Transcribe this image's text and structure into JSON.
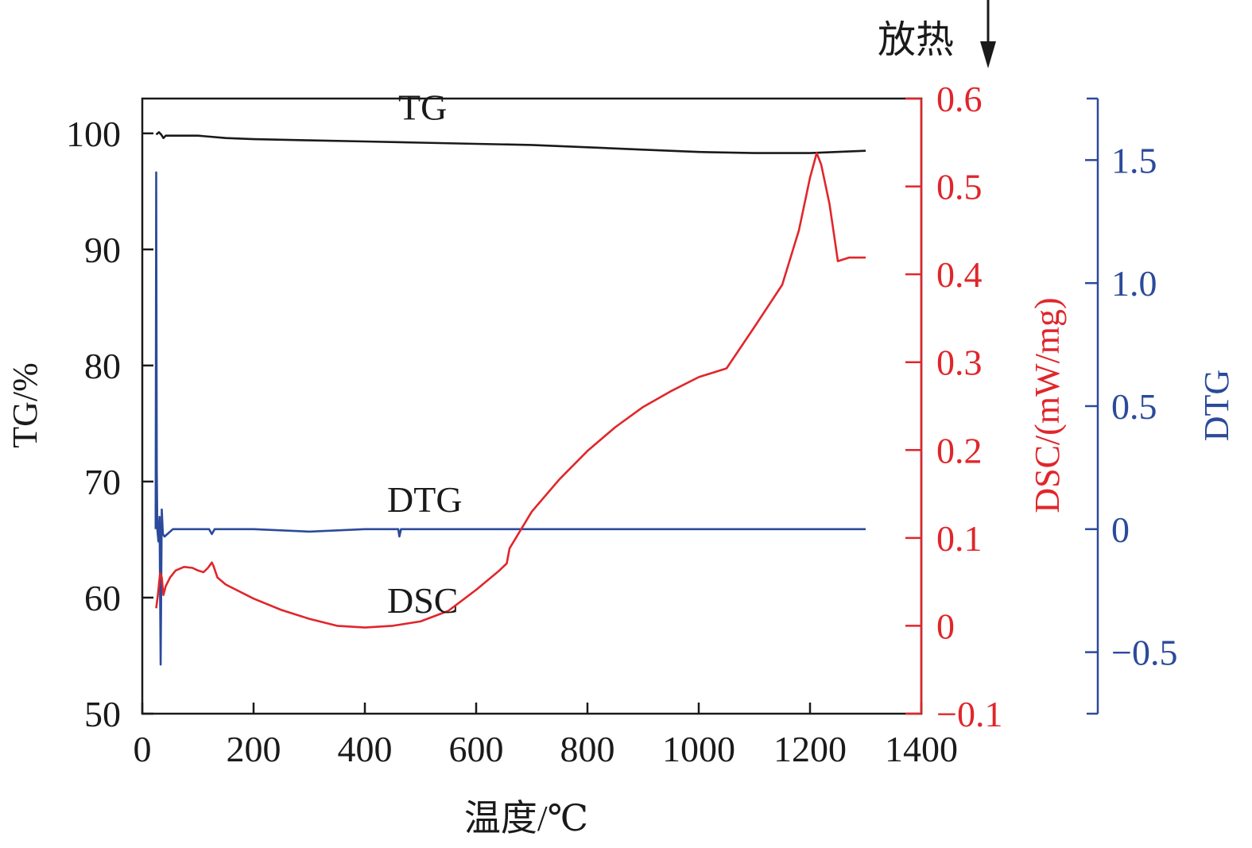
{
  "chart_data": {
    "type": "line",
    "xlabel": "温度/℃",
    "x_axis": {
      "ticks": [
        0,
        200,
        400,
        600,
        800,
        1000,
        1200,
        1400
      ],
      "range": [
        0,
        1400
      ]
    },
    "axes": {
      "tg": {
        "label": "TG/%",
        "range": [
          50,
          103
        ],
        "ticks": [
          50,
          60,
          70,
          80,
          90,
          100
        ],
        "color": "#1a1a1a"
      },
      "dsc": {
        "label": "DSC/(mW/mg)",
        "range": [
          -0.1,
          0.6
        ],
        "ticks": [
          -0.1,
          0,
          0.1,
          0.2,
          0.3,
          0.4,
          0.5,
          0.6
        ],
        "tick_labels": [
          "−0.1",
          "0",
          "0.1",
          "0.2",
          "0.3",
          "0.4",
          "0.5",
          "0.6"
        ],
        "color": "#e0262b"
      },
      "dtg": {
        "label": "DTG",
        "range": [
          -0.75,
          1.75
        ],
        "ticks": [
          -0.5,
          0,
          0.5,
          1.0,
          1.5
        ],
        "tick_labels": [
          "−0.5",
          "0",
          "0.5",
          "1.0",
          "1.5"
        ],
        "color": "#2b4a9b"
      }
    },
    "annotation": {
      "text": "放热"
    },
    "series": [
      {
        "name": "TG",
        "axis": "tg",
        "color": "#1a1a1a",
        "label": "TG",
        "label_at": [
          460,
          101.2
        ],
        "points": [
          [
            25,
            99.9
          ],
          [
            30,
            100.1
          ],
          [
            34,
            99.9
          ],
          [
            38,
            99.6
          ],
          [
            42,
            99.8
          ],
          [
            50,
            99.8
          ],
          [
            100,
            99.8
          ],
          [
            150,
            99.6
          ],
          [
            200,
            99.5
          ],
          [
            300,
            99.4
          ],
          [
            400,
            99.3
          ],
          [
            500,
            99.2
          ],
          [
            600,
            99.1
          ],
          [
            700,
            99.0
          ],
          [
            800,
            98.8
          ],
          [
            900,
            98.6
          ],
          [
            1000,
            98.4
          ],
          [
            1100,
            98.3
          ],
          [
            1200,
            98.3
          ],
          [
            1300,
            98.5
          ]
        ]
      },
      {
        "name": "DTG",
        "axis": "dtg",
        "color": "#2b4a9b",
        "label": "DTG",
        "label_at": [
          440,
          0.07
        ],
        "points": [
          [
            24,
            0.0
          ],
          [
            25,
            1.45
          ],
          [
            26,
            0.25
          ],
          [
            27,
            0.0
          ],
          [
            29,
            -0.05
          ],
          [
            31,
            0.05
          ],
          [
            33,
            -0.55
          ],
          [
            35,
            0.08
          ],
          [
            37,
            -0.02
          ],
          [
            40,
            -0.03
          ],
          [
            45,
            -0.02
          ],
          [
            55,
            0.0
          ],
          [
            100,
            0.0
          ],
          [
            120,
            0.0
          ],
          [
            125,
            -0.02
          ],
          [
            130,
            0.0
          ],
          [
            200,
            0.0
          ],
          [
            300,
            -0.01
          ],
          [
            400,
            0.0
          ],
          [
            460,
            0.0
          ],
          [
            462,
            -0.03
          ],
          [
            465,
            0.0
          ],
          [
            500,
            0.0
          ],
          [
            600,
            0.0
          ],
          [
            700,
            0.0
          ],
          [
            800,
            0.0
          ],
          [
            900,
            0.0
          ],
          [
            1000,
            0.0
          ],
          [
            1100,
            0.0
          ],
          [
            1200,
            0.0
          ],
          [
            1300,
            0.0
          ]
        ]
      },
      {
        "name": "DSC",
        "axis": "dsc",
        "color": "#e0262b",
        "label": "DSC",
        "label_at": [
          440,
          0.015
        ],
        "points": [
          [
            25,
            0.02
          ],
          [
            28,
            0.035
          ],
          [
            32,
            0.06
          ],
          [
            35,
            0.055
          ],
          [
            38,
            0.035
          ],
          [
            42,
            0.045
          ],
          [
            50,
            0.055
          ],
          [
            60,
            0.063
          ],
          [
            75,
            0.067
          ],
          [
            90,
            0.066
          ],
          [
            100,
            0.063
          ],
          [
            110,
            0.061
          ],
          [
            118,
            0.066
          ],
          [
            125,
            0.072
          ],
          [
            128,
            0.068
          ],
          [
            135,
            0.055
          ],
          [
            150,
            0.047
          ],
          [
            200,
            0.031
          ],
          [
            250,
            0.018
          ],
          [
            300,
            0.008
          ],
          [
            350,
            0.0
          ],
          [
            400,
            -0.002
          ],
          [
            450,
            0.0
          ],
          [
            500,
            0.005
          ],
          [
            550,
            0.017
          ],
          [
            600,
            0.041
          ],
          [
            640,
            0.062
          ],
          [
            655,
            0.071
          ],
          [
            660,
            0.088
          ],
          [
            700,
            0.13
          ],
          [
            750,
            0.167
          ],
          [
            800,
            0.199
          ],
          [
            850,
            0.226
          ],
          [
            900,
            0.249
          ],
          [
            950,
            0.267
          ],
          [
            1000,
            0.283
          ],
          [
            1050,
            0.293
          ],
          [
            1100,
            0.34
          ],
          [
            1150,
            0.388
          ],
          [
            1180,
            0.45
          ],
          [
            1200,
            0.51
          ],
          [
            1212,
            0.538
          ],
          [
            1220,
            0.525
          ],
          [
            1235,
            0.48
          ],
          [
            1245,
            0.437
          ],
          [
            1250,
            0.415
          ],
          [
            1270,
            0.419
          ],
          [
            1300,
            0.419
          ]
        ]
      }
    ]
  }
}
